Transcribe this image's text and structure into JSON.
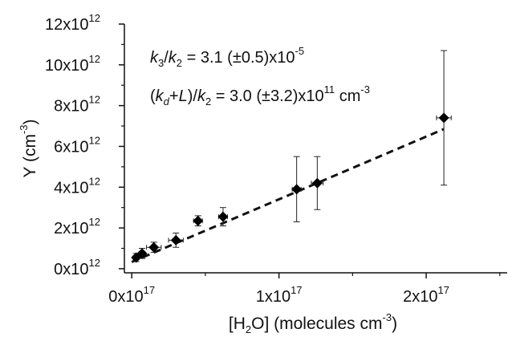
{
  "chart_data": {
    "type": "scatter",
    "title": "",
    "xlabel": "[H2O] (molecules cm-3)",
    "ylabel": "Y (cm-3)",
    "xlim": [
      -5000000000000000.0,
      2.55e+17
    ],
    "ylim": [
      -200000000000.0,
      12000000000000.0
    ],
    "x_ticks": [
      {
        "value": 0,
        "label": "0x10",
        "exp": "17"
      },
      {
        "value": 1e+17,
        "label": "1x10",
        "exp": "17"
      },
      {
        "value": 2e+17,
        "label": "2x10",
        "exp": "17"
      }
    ],
    "y_ticks": [
      {
        "value": 0,
        "label": "0x10",
        "exp": "12"
      },
      {
        "value": 2000000000000.0,
        "label": "2x10",
        "exp": "12"
      },
      {
        "value": 4000000000000.0,
        "label": "4x10",
        "exp": "12"
      },
      {
        "value": 6000000000000.0,
        "label": "6x10",
        "exp": "12"
      },
      {
        "value": 8000000000000.0,
        "label": "8x10",
        "exp": "12"
      },
      {
        "value": 10000000000000.0,
        "label": "10x10",
        "exp": "12"
      },
      {
        "value": 12000000000000.0,
        "label": "12x10",
        "exp": "12"
      }
    ],
    "points": [
      {
        "x": 3000000000000000.0,
        "y": 550000000000.0,
        "xerr": 2000000000000000.0,
        "yerr": 200000000000.0
      },
      {
        "x": 7000000000000000.0,
        "y": 750000000000.0,
        "xerr": 2000000000000000.0,
        "yerr": 250000000000.0
      },
      {
        "x": 1.5e+16,
        "y": 1050000000000.0,
        "xerr": 5000000000000000.0,
        "yerr": 250000000000.0
      },
      {
        "x": 3e+16,
        "y": 1400000000000.0,
        "xerr": 5000000000000000.0,
        "yerr": 350000000000.0
      },
      {
        "x": 4.5e+16,
        "y": 2350000000000.0,
        "xerr": 3000000000000000.0,
        "yerr": 250000000000.0
      },
      {
        "x": 6.2e+16,
        "y": 2550000000000.0,
        "xerr": 3000000000000000.0,
        "yerr": 450000000000.0
      },
      {
        "x": 1.12e+17,
        "y": 3900000000000.0,
        "xerr": 3000000000000000.0,
        "yerr": 1600000000000.0
      },
      {
        "x": 1.26e+17,
        "y": 4200000000000.0,
        "xerr": 4000000000000000.0,
        "yerr": 1300000000000.0
      },
      {
        "x": 2.12e+17,
        "y": 7400000000000.0,
        "xerr": 5000000000000000.0,
        "yerr": 3300000000000.0
      }
    ],
    "fit_line": {
      "x": [
        0.0,
        2.12e+17
      ],
      "y": [
        330000000000.0,
        6850000000000.0
      ],
      "style": "dashed"
    },
    "annotations": {
      "line1": {
        "k": "k",
        "s1": "3",
        "slash": "/",
        "k2": "k",
        "s2": "2",
        "value": " = 3.1 (±0.5)x10",
        "exp": "-5"
      },
      "line2": {
        "open": "(",
        "k": "k",
        "sd": "d",
        "plus": "+",
        "L": "L",
        "close": ")/",
        "k2": "k",
        "s2": "2",
        "value": " = 3.0 (±3.2)x10",
        "exp": "11",
        "unit": " cm",
        "unit_exp": "-3"
      }
    },
    "xlabel_parts": {
      "a": "[H",
      "sub": "2",
      "b": "O] (molecules cm",
      "sup": "-3",
      "c": ")"
    },
    "ylabel_parts": {
      "a": "Y (cm",
      "sup": "-3",
      "b": ")"
    },
    "grid": false,
    "legend": "none"
  }
}
